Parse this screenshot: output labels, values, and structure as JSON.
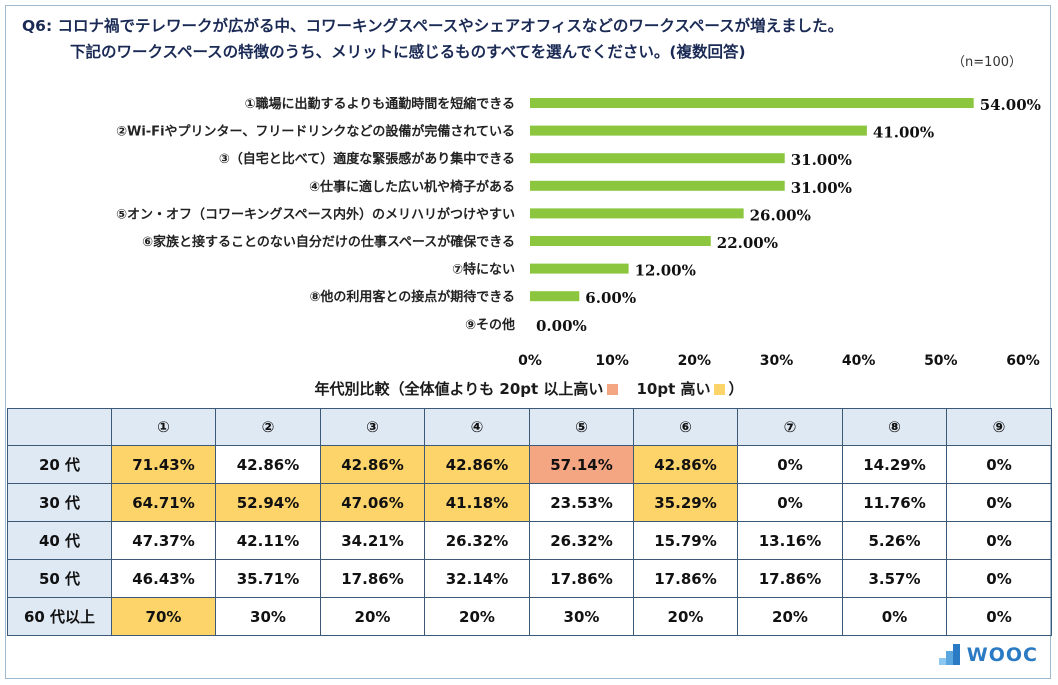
{
  "title_line1": "Q6: コロナ禍でテレワークが広がる中、コワーキングスペースやシェアオフィスなどのワークスペースが増えました。",
  "title_line2": "下記のワークスペースの特徴のうち、メリットに感じるものすべてを選んでください。(複数回答)",
  "n_label": "（n=100）",
  "chart_data": {
    "type": "bar",
    "orientation": "horizontal",
    "categories": [
      "①職場に出勤するよりも通勤時間を短縮できる",
      "②Wi-Fiやプリンター、フリードリンクなどの設備が完備されている",
      "③（自宅と比べて）適度な緊張感があり集中できる",
      "④仕事に適した広い机や椅子がある",
      "⑤オン・オフ（コワーキングスペース内外）のメリハリがつけやすい",
      "⑥家族と接することのない自分だけの仕事スペースが確保できる",
      "⑦特にない",
      "⑧他の利用客との接点が期待できる",
      "⑨その他"
    ],
    "values": [
      54.0,
      41.0,
      31.0,
      31.0,
      26.0,
      22.0,
      12.0,
      6.0,
      0.0
    ],
    "value_labels": [
      "54.00%",
      "41.00%",
      "31.00%",
      "31.00%",
      "26.00%",
      "22.00%",
      "12.00%",
      "6.00%",
      "0.00%"
    ],
    "xlim": [
      0,
      60
    ],
    "xticks": [
      "0%",
      "10%",
      "20%",
      "30%",
      "40%",
      "50%",
      "60%"
    ],
    "bar_color": "#8cc63f"
  },
  "table": {
    "subtitle_prefix": "年代別比較（全体値よりも 20pt 以上高い",
    "subtitle_mid": "10pt 高い",
    "subtitle_suffix": "）",
    "color_20pt": "#f4a582",
    "color_10pt": "#fdd46a",
    "headers": [
      "",
      "①",
      "②",
      "③",
      "④",
      "⑤",
      "⑥",
      "⑦",
      "⑧",
      "⑨"
    ],
    "rows": [
      {
        "label": "20 代",
        "cells": [
          "71.43%",
          "42.86%",
          "42.86%",
          "42.86%",
          "57.14%",
          "42.86%",
          "0%",
          "14.29%",
          "0%"
        ],
        "hl": [
          "10",
          "",
          "10",
          "10",
          "20",
          "10",
          "",
          "",
          ""
        ]
      },
      {
        "label": "30 代",
        "cells": [
          "64.71%",
          "52.94%",
          "47.06%",
          "41.18%",
          "23.53%",
          "35.29%",
          "0%",
          "11.76%",
          "0%"
        ],
        "hl": [
          "10",
          "10",
          "10",
          "10",
          "",
          "10",
          "",
          "",
          ""
        ]
      },
      {
        "label": "40 代",
        "cells": [
          "47.37%",
          "42.11%",
          "34.21%",
          "26.32%",
          "26.32%",
          "15.79%",
          "13.16%",
          "5.26%",
          "0%"
        ],
        "hl": [
          "",
          "",
          "",
          "",
          "",
          "",
          "",
          "",
          ""
        ]
      },
      {
        "label": "50 代",
        "cells": [
          "46.43%",
          "35.71%",
          "17.86%",
          "32.14%",
          "17.86%",
          "17.86%",
          "17.86%",
          "3.57%",
          "0%"
        ],
        "hl": [
          "",
          "",
          "",
          "",
          "",
          "",
          "",
          "",
          ""
        ]
      },
      {
        "label": "60 代以上",
        "cells": [
          "70%",
          "30%",
          "20%",
          "20%",
          "30%",
          "20%",
          "20%",
          "0%",
          "0%"
        ],
        "hl": [
          "10",
          "",
          "",
          "",
          "",
          "",
          "",
          "",
          ""
        ]
      }
    ]
  },
  "logo": {
    "text": "WOOC",
    "icon": "wooc-blocks-icon"
  }
}
